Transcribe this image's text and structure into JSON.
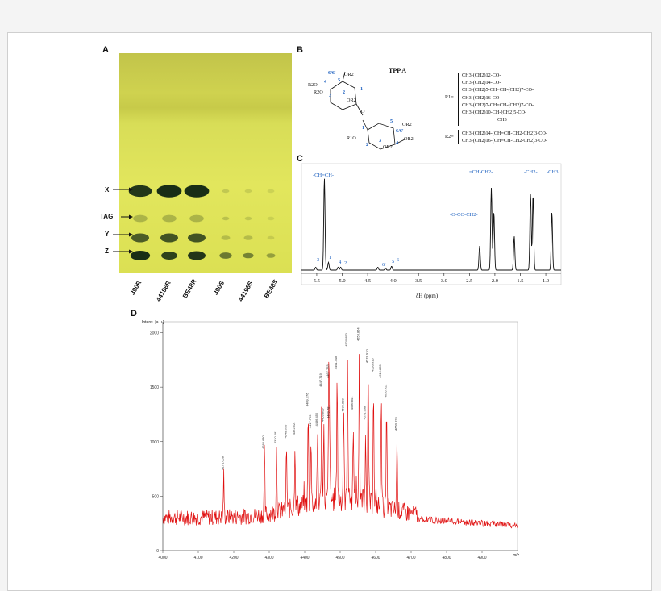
{
  "panels": {
    "A": {
      "letter": "A",
      "row_labels": [
        "X",
        "TAG",
        "Y",
        "Z"
      ],
      "lanes": [
        "390R",
        "44196R",
        "BE48R",
        "390S",
        "44196S",
        "BE48S"
      ]
    },
    "B": {
      "letter": "B",
      "title": "TPP A",
      "ring_labels": {
        "top_positions": "6/6'",
        "or2_top": "OR2",
        "r2o_a": "R2O",
        "r2o_b": "R2O",
        "or2_mid": "OR2",
        "pos_4": "4",
        "pos_5": "5",
        "pos_3": "3",
        "pos_2": "2",
        "pos_1": "1",
        "o_link": "O",
        "b_pos_1": "1",
        "b_pos_5": "5",
        "b_pos_66": "6/6'",
        "b_or2_a": "OR2",
        "r1o": "R1O",
        "b_pos_2": "2",
        "b_pos_3": "3",
        "b_pos_4": "4",
        "b_or2_b": "OR2",
        "b_or2_c": "OR2"
      },
      "r1_label": "R1=",
      "r1_list": [
        "CH3-(CH2)12-CO-",
        "CH3-(CH2)14-CO-",
        "CH3-(CH2)5-CH=CH-(CH2)7-CO-",
        "CH3-(CH2)16-CO-",
        "CH3-(CH2)7-CH=CH-(CH2)7-CO-",
        "CH3-(CH2)10-CH-(CH2)5-CO-",
        "CH3"
      ],
      "r2_label": "R2=",
      "r2_list": [
        "CH3-(CH2)14-(CH=CH-CH2-CH2)3-CO-",
        "CH3-(CH2)16-(CH=CH-CH2-CH2)3-CO-"
      ]
    },
    "C": {
      "letter": "C",
      "labels": {
        "ch_eq_ch": "-CH=CH-",
        "eq_ch_ch2": "=CH-CH2-",
        "ch2": "-CH2-",
        "ch3": "-CH3",
        "ococh2": "-O-CO-CH2-",
        "p3": "3",
        "p1": "1",
        "p4": "4",
        "p2": "2",
        "p6": "6'",
        "p5": "5",
        "p6b": "6"
      },
      "x_ticks": [
        "5.5",
        "5.0",
        "4.5",
        "4.0",
        "3.5",
        "3.0",
        "2.5",
        "2.0",
        "1.5",
        "1.0"
      ],
      "xlabel": "δH (ppm)"
    },
    "D": {
      "letter": "D",
      "ylabel": "Intens. [a.u.]",
      "y_ticks": [
        "2000",
        "1500",
        "1000",
        "500",
        "0"
      ],
      "x_ticks": [
        "4000",
        "4100",
        "4200",
        "4300",
        "4400",
        "4500",
        "4600",
        "4700",
        "4800",
        "4900"
      ],
      "x_unit": "m/z",
      "peak_labels": [
        "4171.658",
        "4286.630",
        "4320.581",
        "4348.670",
        "4372.527",
        "4409.776",
        "4417.753",
        "4436.455",
        "4447.719",
        "4453.809",
        "4467.753",
        "4469.781",
        "4491.408",
        "4509.838",
        "4520.850",
        "4536.801",
        "4553.854",
        "4571.698",
        "4578.910",
        "4593.916",
        "4615.853",
        "4630.912",
        "4660.126"
      ]
    }
  },
  "chart_data": [
    {
      "type": "line",
      "title": "",
      "xlabel": "δH (ppm)",
      "ylabel": "",
      "x_reversed": true,
      "xlim": [
        5.8,
        0.7
      ],
      "peaks": [
        {
          "x": 5.35,
          "height": 0.95,
          "label": "-CH=CH-"
        },
        {
          "x": 5.27,
          "height": 0.08,
          "label": "1"
        },
        {
          "x": 5.52,
          "height": 0.03,
          "label": "3"
        },
        {
          "x": 5.08,
          "height": 0.03,
          "label": "4"
        },
        {
          "x": 5.03,
          "height": 0.03,
          "label": "2"
        },
        {
          "x": 4.3,
          "height": 0.03,
          "label": "6'"
        },
        {
          "x": 4.15,
          "height": 0.02,
          "label": ""
        },
        {
          "x": 4.03,
          "height": 0.04,
          "label": "5"
        },
        {
          "x": 2.3,
          "height": 0.25,
          "label": "-O-CO-CH2-"
        },
        {
          "x": 2.07,
          "height": 0.85,
          "label": "=CH-CH2-"
        },
        {
          "x": 2.02,
          "height": 0.6,
          "label": ""
        },
        {
          "x": 1.62,
          "height": 0.35,
          "label": ""
        },
        {
          "x": 1.3,
          "height": 0.8,
          "label": "-CH2-"
        },
        {
          "x": 1.25,
          "height": 0.78,
          "label": ""
        },
        {
          "x": 0.88,
          "height": 0.6,
          "label": "-CH3"
        }
      ]
    },
    {
      "type": "line",
      "title": "",
      "xlabel": "m/z",
      "ylabel": "Intens. [a.u.]",
      "xlim": [
        4000,
        5000
      ],
      "ylim": [
        0,
        2100
      ],
      "series": [
        {
          "values": [
            {
              "x": 4171.658,
              "y": 720
            },
            {
              "x": 4286.63,
              "y": 910
            },
            {
              "x": 4320.581,
              "y": 960
            },
            {
              "x": 4348.67,
              "y": 1010
            },
            {
              "x": 4372.527,
              "y": 1040
            },
            {
              "x": 4409.776,
              "y": 1300
            },
            {
              "x": 4417.753,
              "y": 1100
            },
            {
              "x": 4436.455,
              "y": 1120
            },
            {
              "x": 4447.719,
              "y": 1480
            },
            {
              "x": 4453.809,
              "y": 1160
            },
            {
              "x": 4467.753,
              "y": 1560
            },
            {
              "x": 4469.781,
              "y": 1190
            },
            {
              "x": 4491.408,
              "y": 1640
            },
            {
              "x": 4509.838,
              "y": 1250
            },
            {
              "x": 4520.85,
              "y": 1850
            },
            {
              "x": 4536.801,
              "y": 1270
            },
            {
              "x": 4553.854,
              "y": 1900
            },
            {
              "x": 4571.698,
              "y": 1180
            },
            {
              "x": 4578.91,
              "y": 1700
            },
            {
              "x": 4593.916,
              "y": 1620
            },
            {
              "x": 4615.853,
              "y": 1560
            },
            {
              "x": 4630.912,
              "y": 1380
            },
            {
              "x": 4660.126,
              "y": 1080
            }
          ]
        }
      ]
    }
  ]
}
